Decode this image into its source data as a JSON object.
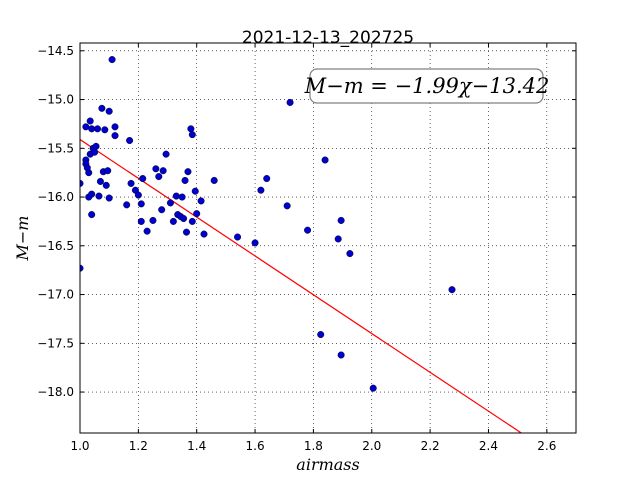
{
  "chart_data": {
    "type": "scatter",
    "title": "2021-12-13_202725",
    "xlabel": "airmass",
    "ylabel": "M−m",
    "xlim": [
      1.0,
      2.7
    ],
    "ylim": [
      -18.42,
      -14.42
    ],
    "x_ticks": [
      1.0,
      1.2,
      1.4,
      1.6,
      1.8,
      2.0,
      2.2,
      2.4,
      2.6
    ],
    "x_tick_labels": [
      "1.0",
      "1.2",
      "1.4",
      "1.6",
      "1.8",
      "2.0",
      "2.2",
      "2.4",
      "2.6"
    ],
    "y_ticks": [
      -14.5,
      -15.0,
      -15.5,
      -16.0,
      -16.5,
      -17.0,
      -17.5,
      -18.0
    ],
    "y_tick_labels": [
      "−14.5",
      "−15.0",
      "−15.5",
      "−16.0",
      "−16.5",
      "−17.0",
      "−17.5",
      "−18.0"
    ],
    "grid": true,
    "annotation": "M−m = −1.99χ−13.42",
    "fit": {
      "slope": -1.99,
      "intercept": -13.42,
      "color": "#ff0000"
    },
    "point_color": "#0000cc",
    "points": [
      [
        1.0,
        -15.86
      ],
      [
        1.0,
        -16.73
      ],
      [
        1.02,
        -15.28
      ],
      [
        1.02,
        -15.62
      ],
      [
        1.02,
        -15.66
      ],
      [
        1.025,
        -15.7
      ],
      [
        1.03,
        -15.75
      ],
      [
        1.03,
        -16.0
      ],
      [
        1.035,
        -15.56
      ],
      [
        1.035,
        -15.22
      ],
      [
        1.04,
        -15.3
      ],
      [
        1.04,
        -16.18
      ],
      [
        1.04,
        -15.97
      ],
      [
        1.045,
        -15.5
      ],
      [
        1.05,
        -15.54
      ],
      [
        1.055,
        -15.48
      ],
      [
        1.06,
        -15.3
      ],
      [
        1.065,
        -15.99
      ],
      [
        1.07,
        -15.84
      ],
      [
        1.075,
        -15.09
      ],
      [
        1.08,
        -15.74
      ],
      [
        1.085,
        -15.31
      ],
      [
        1.09,
        -15.88
      ],
      [
        1.095,
        -15.73
      ],
      [
        1.1,
        -16.01
      ],
      [
        1.1,
        -15.12
      ],
      [
        1.11,
        -14.59
      ],
      [
        1.12,
        -15.28
      ],
      [
        1.12,
        -15.37
      ],
      [
        1.16,
        -16.08
      ],
      [
        1.17,
        -15.42
      ],
      [
        1.175,
        -15.86
      ],
      [
        1.19,
        -15.93
      ],
      [
        1.2,
        -15.98
      ],
      [
        1.21,
        -16.07
      ],
      [
        1.21,
        -16.25
      ],
      [
        1.215,
        -15.81
      ],
      [
        1.23,
        -16.35
      ],
      [
        1.25,
        -16.24
      ],
      [
        1.26,
        -15.71
      ],
      [
        1.27,
        -15.79
      ],
      [
        1.28,
        -16.13
      ],
      [
        1.285,
        -15.73
      ],
      [
        1.295,
        -15.56
      ],
      [
        1.31,
        -16.06
      ],
      [
        1.32,
        -16.25
      ],
      [
        1.33,
        -15.99
      ],
      [
        1.335,
        -16.18
      ],
      [
        1.345,
        -16.2
      ],
      [
        1.35,
        -16.0
      ],
      [
        1.355,
        -16.22
      ],
      [
        1.36,
        -15.83
      ],
      [
        1.365,
        -16.36
      ],
      [
        1.37,
        -15.74
      ],
      [
        1.38,
        -15.3
      ],
      [
        1.385,
        -15.36
      ],
      [
        1.385,
        -16.25
      ],
      [
        1.395,
        -15.94
      ],
      [
        1.4,
        -16.17
      ],
      [
        1.415,
        -16.04
      ],
      [
        1.425,
        -16.38
      ],
      [
        1.46,
        -15.83
      ],
      [
        1.54,
        -16.41
      ],
      [
        1.6,
        -16.47
      ],
      [
        1.62,
        -15.93
      ],
      [
        1.64,
        -15.81
      ],
      [
        1.71,
        -16.09
      ],
      [
        1.72,
        -15.03
      ],
      [
        1.78,
        -16.34
      ],
      [
        1.825,
        -17.41
      ],
      [
        1.84,
        -15.62
      ],
      [
        1.885,
        -16.43
      ],
      [
        1.895,
        -17.62
      ],
      [
        1.895,
        -16.24
      ],
      [
        1.925,
        -16.58
      ],
      [
        2.005,
        -17.96
      ],
      [
        2.275,
        -16.95
      ]
    ]
  }
}
